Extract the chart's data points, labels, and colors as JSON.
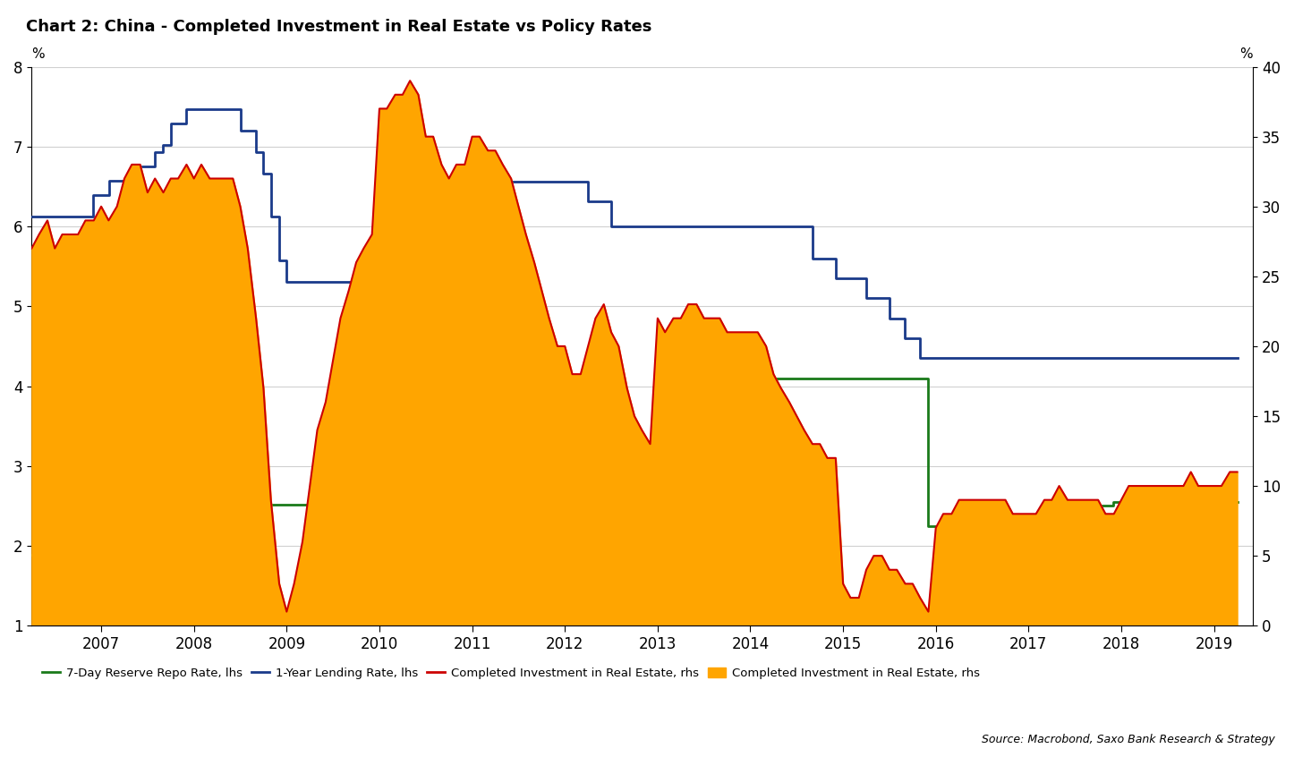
{
  "title": "Chart 2: China - Completed Investment in Real Estate vs Policy Rates",
  "ylabel_left": "%",
  "ylabel_right": "%",
  "ylim_left": [
    1,
    8
  ],
  "ylim_right": [
    0,
    40
  ],
  "yticks_left": [
    1,
    2,
    3,
    4,
    5,
    6,
    7,
    8
  ],
  "yticks_right": [
    0,
    5,
    10,
    15,
    20,
    25,
    30,
    35,
    40
  ],
  "xlim": [
    2006.25,
    2019.42
  ],
  "xticks": [
    2007,
    2008,
    2009,
    2010,
    2011,
    2012,
    2013,
    2014,
    2015,
    2016,
    2017,
    2018,
    2019
  ],
  "background_color": "#ffffff",
  "grid_color": "#d0d0d0",
  "source_text": "Source: Macrobond, Saxo Bank Research & Strategy",
  "legend_entries": [
    {
      "label": "7-Day Reserve Repo Rate, lhs",
      "color": "#1a7a1a",
      "type": "line"
    },
    {
      "label": "1-Year Lending Rate, lhs",
      "color": "#1a3a8a",
      "type": "line"
    },
    {
      "label": "Completed Investment in Real Estate, rhs",
      "color": "#cc0000",
      "type": "line"
    },
    {
      "label": "Completed Investment in Real Estate, rhs",
      "color": "#FFA500",
      "type": "fill"
    }
  ],
  "lending_rate": {
    "dates": [
      2006.25,
      2006.417,
      2006.917,
      2007.0,
      2007.083,
      2007.25,
      2007.417,
      2007.583,
      2007.667,
      2007.75,
      2007.917,
      2008.0,
      2008.083,
      2008.25,
      2008.5,
      2008.667,
      2008.75,
      2008.833,
      2008.917,
      2009.0,
      2009.083,
      2009.917,
      2010.0,
      2010.667,
      2010.75,
      2010.833,
      2010.917,
      2011.0,
      2011.083,
      2011.25,
      2011.333,
      2011.5,
      2011.583,
      2011.917,
      2012.0,
      2012.25,
      2012.417,
      2012.5,
      2012.583,
      2013.0,
      2014.0,
      2014.583,
      2014.667,
      2014.833,
      2014.917,
      2015.0,
      2015.083,
      2015.25,
      2015.333,
      2015.5,
      2015.583,
      2015.667,
      2015.75,
      2015.833,
      2015.917,
      2016.0,
      2016.083,
      2019.25
    ],
    "values": [
      6.12,
      6.12,
      6.39,
      6.39,
      6.57,
      6.57,
      6.75,
      6.93,
      7.02,
      7.29,
      7.47,
      7.47,
      7.47,
      7.47,
      7.2,
      6.93,
      6.66,
      6.12,
      5.58,
      5.31,
      5.31,
      5.31,
      5.31,
      5.31,
      5.56,
      5.81,
      6.06,
      6.06,
      6.31,
      6.31,
      6.56,
      6.56,
      6.56,
      6.56,
      6.56,
      6.31,
      6.31,
      6.0,
      6.0,
      6.0,
      6.0,
      6.0,
      5.6,
      5.6,
      5.35,
      5.35,
      5.35,
      5.1,
      5.1,
      4.85,
      4.85,
      4.6,
      4.6,
      4.35,
      4.35,
      4.35,
      4.35,
      4.35
    ]
  },
  "repo_rate": {
    "dates": [
      2006.25,
      2006.583,
      2006.917,
      2007.0,
      2007.583,
      2007.833,
      2008.0,
      2008.083,
      2009.0,
      2009.083,
      2010.0,
      2010.583,
      2010.667,
      2010.833,
      2011.0,
      2011.083,
      2011.417,
      2011.583,
      2011.75,
      2011.917,
      2012.0,
      2012.083,
      2012.25,
      2012.333,
      2012.5,
      2012.583,
      2013.0,
      2013.583,
      2013.667,
      2013.75,
      2013.917,
      2014.0,
      2014.583,
      2014.667,
      2014.75,
      2014.917,
      2015.0,
      2015.25,
      2015.583,
      2015.833,
      2015.917,
      2016.0,
      2016.083,
      2016.167,
      2016.333,
      2016.583,
      2016.917,
      2017.0,
      2017.667,
      2017.833,
      2017.917,
      2018.0,
      2018.083,
      2019.25
    ],
    "values": [
      1.89,
      1.89,
      2.52,
      2.52,
      2.52,
      2.52,
      2.52,
      2.52,
      2.52,
      2.52,
      2.52,
      2.52,
      2.52,
      2.52,
      2.52,
      2.52,
      3.1,
      3.1,
      3.5,
      3.5,
      3.5,
      3.25,
      3.25,
      3.25,
      3.25,
      3.25,
      3.25,
      3.25,
      4.1,
      4.1,
      4.1,
      4.1,
      4.1,
      4.1,
      4.1,
      4.1,
      4.1,
      4.1,
      4.1,
      4.1,
      2.25,
      2.25,
      2.25,
      2.25,
      2.25,
      2.25,
      2.25,
      2.25,
      2.5,
      2.5,
      2.55,
      2.55,
      2.55,
      2.55
    ]
  },
  "real_estate": {
    "dates": [
      2006.25,
      2006.33,
      2006.42,
      2006.5,
      2006.58,
      2006.67,
      2006.75,
      2006.83,
      2006.92,
      2007.0,
      2007.08,
      2007.17,
      2007.25,
      2007.33,
      2007.42,
      2007.5,
      2007.58,
      2007.67,
      2007.75,
      2007.83,
      2007.92,
      2008.0,
      2008.08,
      2008.17,
      2008.25,
      2008.33,
      2008.42,
      2008.5,
      2008.58,
      2008.67,
      2008.75,
      2008.83,
      2008.92,
      2009.0,
      2009.08,
      2009.17,
      2009.25,
      2009.33,
      2009.42,
      2009.5,
      2009.58,
      2009.67,
      2009.75,
      2009.83,
      2009.92,
      2010.0,
      2010.08,
      2010.17,
      2010.25,
      2010.33,
      2010.42,
      2010.5,
      2010.58,
      2010.67,
      2010.75,
      2010.83,
      2010.92,
      2011.0,
      2011.08,
      2011.17,
      2011.25,
      2011.33,
      2011.42,
      2011.5,
      2011.58,
      2011.67,
      2011.75,
      2011.83,
      2011.92,
      2012.0,
      2012.08,
      2012.17,
      2012.25,
      2012.33,
      2012.42,
      2012.5,
      2012.58,
      2012.67,
      2012.75,
      2012.83,
      2012.92,
      2013.0,
      2013.08,
      2013.17,
      2013.25,
      2013.33,
      2013.42,
      2013.5,
      2013.58,
      2013.67,
      2013.75,
      2013.83,
      2013.92,
      2014.0,
      2014.08,
      2014.17,
      2014.25,
      2014.33,
      2014.42,
      2014.5,
      2014.58,
      2014.67,
      2014.75,
      2014.83,
      2014.92,
      2015.0,
      2015.08,
      2015.17,
      2015.25,
      2015.33,
      2015.42,
      2015.5,
      2015.58,
      2015.67,
      2015.75,
      2015.83,
      2015.92,
      2016.0,
      2016.08,
      2016.17,
      2016.25,
      2016.33,
      2016.42,
      2016.5,
      2016.58,
      2016.67,
      2016.75,
      2016.83,
      2016.92,
      2017.0,
      2017.08,
      2017.17,
      2017.25,
      2017.33,
      2017.42,
      2017.5,
      2017.58,
      2017.67,
      2017.75,
      2017.83,
      2017.92,
      2018.0,
      2018.08,
      2018.17,
      2018.25,
      2018.33,
      2018.42,
      2018.5,
      2018.58,
      2018.67,
      2018.75,
      2018.83,
      2018.92,
      2019.0,
      2019.08,
      2019.17,
      2019.25
    ],
    "values": [
      27,
      28,
      29,
      27,
      28,
      28,
      28,
      29,
      29,
      30,
      29,
      30,
      32,
      33,
      33,
      31,
      32,
      31,
      32,
      32,
      33,
      32,
      33,
      32,
      32,
      32,
      32,
      30,
      27,
      22,
      17,
      9,
      3,
      1,
      3,
      6,
      10,
      14,
      16,
      19,
      22,
      24,
      26,
      27,
      28,
      37,
      37,
      38,
      38,
      39,
      38,
      35,
      35,
      33,
      32,
      33,
      33,
      35,
      35,
      34,
      34,
      33,
      32,
      30,
      28,
      26,
      24,
      22,
      20,
      20,
      18,
      18,
      20,
      22,
      23,
      21,
      20,
      17,
      15,
      14,
      13,
      22,
      21,
      22,
      22,
      23,
      23,
      22,
      22,
      22,
      21,
      21,
      21,
      21,
      21,
      20,
      18,
      17,
      16,
      15,
      14,
      13,
      13,
      12,
      12,
      3,
      2,
      2,
      4,
      5,
      5,
      4,
      4,
      3,
      3,
      2,
      1,
      7,
      8,
      8,
      9,
      9,
      9,
      9,
      9,
      9,
      9,
      8,
      8,
      8,
      8,
      9,
      9,
      10,
      9,
      9,
      9,
      9,
      9,
      8,
      8,
      9,
      10,
      10,
      10,
      10,
      10,
      10,
      10,
      10,
      11,
      10,
      10,
      10,
      10,
      11,
      11
    ]
  },
  "colors": {
    "lending_rate": "#1a3a8a",
    "repo_rate": "#1a7a1a",
    "real_estate_line": "#cc0000",
    "real_estate_fill": "#FFA500",
    "background": "#ffffff",
    "grid": "#d0d0d0"
  }
}
